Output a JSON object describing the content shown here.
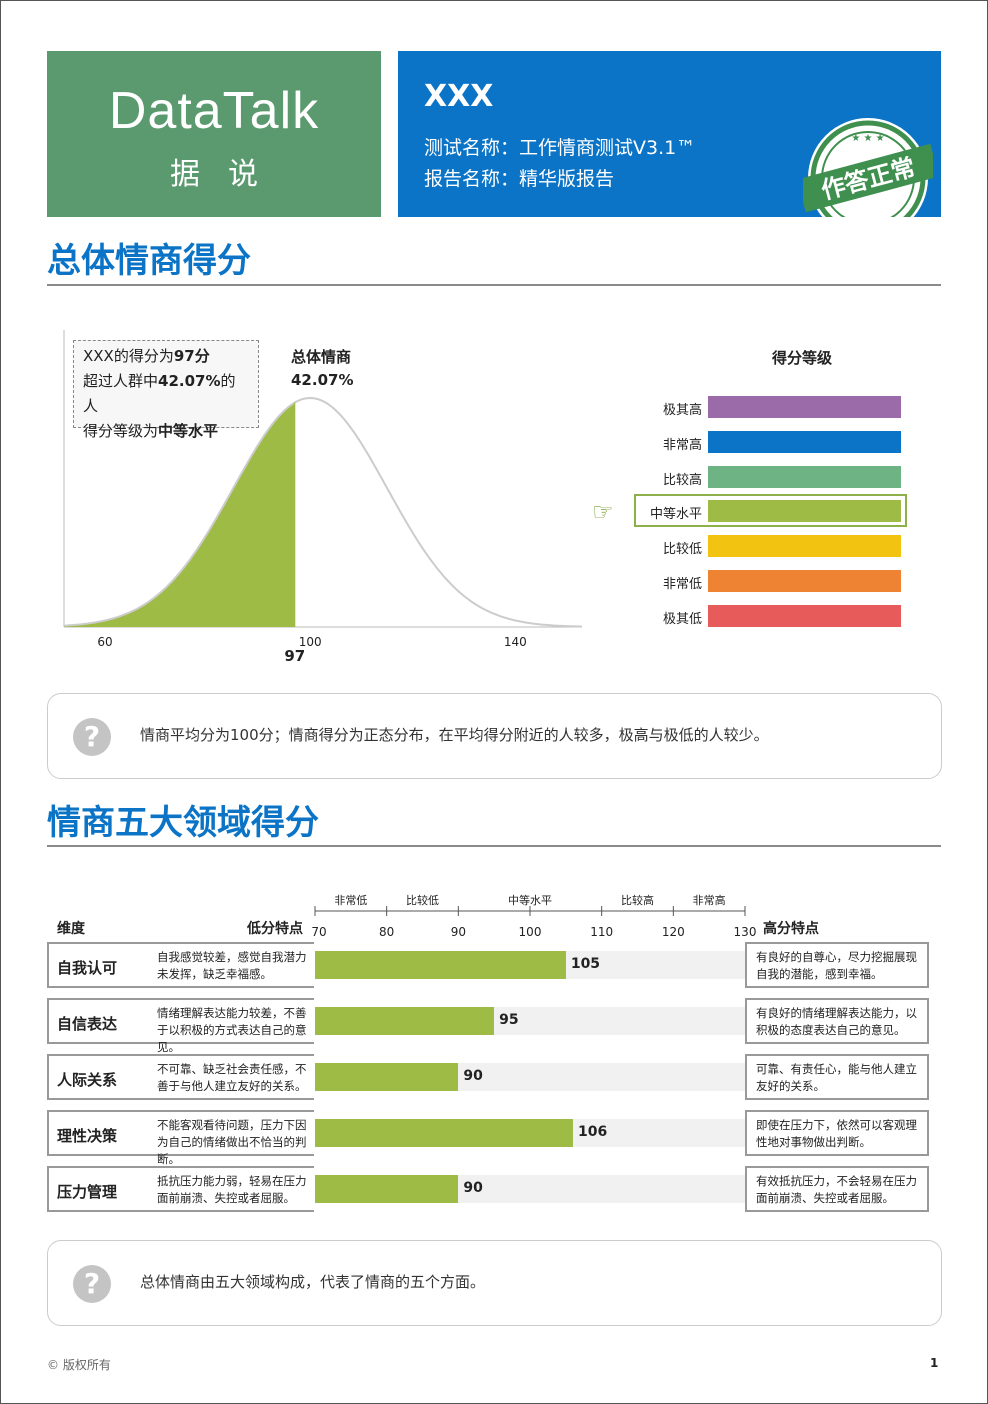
{
  "header": {
    "brand": "DataTalk",
    "brand_sub": "据说",
    "name": "XXX",
    "test_name": "测试名称：工作情商测试V3.1™",
    "report_name": "报告名称：精华版报告",
    "stamp_text": "作答正常",
    "colors": {
      "logo_bg": "#5a9a6e",
      "info_bg": "#0b74c6",
      "stamp": "#3f8f4f"
    }
  },
  "section1": {
    "title": "总体情商得分",
    "note_line1_pre": "XXX的得分为",
    "note_line1_val": "97分",
    "note_line2_pre": "超过人群中",
    "note_line2_val": "42.07%",
    "note_line2_post": "的人",
    "note_line3_pre": "得分等级为",
    "note_line3_val": "中等水平",
    "curve_label": "总体情商",
    "curve_percent": "42.07%",
    "score_marker": "97",
    "grade_title": "得分等级",
    "grades": [
      {
        "label": "极其高",
        "color": "#9b6aa8"
      },
      {
        "label": "非常高",
        "color": "#0b74c6"
      },
      {
        "label": "比较高",
        "color": "#6db384"
      },
      {
        "label": "中等水平",
        "color": "#9dbb45"
      },
      {
        "label": "比较低",
        "color": "#f2c311"
      },
      {
        "label": "非常低",
        "color": "#ef8334"
      },
      {
        "label": "极其低",
        "color": "#e85b5b"
      }
    ],
    "current_grade": "中等水平",
    "tip": "情商平均分为100分；情商得分为正态分布，在平均得分附近的人较多，极高与极低的人较少。"
  },
  "chart_data": {
    "type": "area",
    "title": "总体情商",
    "distribution": "normal",
    "mean": 100,
    "sd": 15,
    "x_ticks": [
      60,
      100,
      140
    ],
    "xlim": [
      52,
      153
    ],
    "score": 97,
    "percentile": 42.07,
    "shaded_range": [
      52,
      97
    ],
    "colors": {
      "shade": "#9dbb45",
      "curve": "#cccccc"
    }
  },
  "section2": {
    "title": "情商五大领域得分",
    "col_dim": "维度",
    "col_low": "低分特点",
    "col_high": "高分特点",
    "band_labels": [
      "非常低",
      "比较低",
      "中等水平",
      "比较高",
      "非常高"
    ],
    "axis_ticks": [
      70,
      80,
      90,
      100,
      110,
      120,
      130
    ],
    "axis_range": [
      70,
      130
    ],
    "rows": [
      {
        "name": "自我认可",
        "score": 105,
        "low": "自我感觉较差，感觉自我潜力未发挥，缺乏幸福感。",
        "high": "有良好的自尊心，尽力挖掘展现自我的潜能，感到幸福。"
      },
      {
        "name": "自信表达",
        "score": 95,
        "low": "情绪理解表达能力较差，不善于以积极的方式表达自己的意见。",
        "high": "有良好的情绪理解表达能力，以积极的态度表达自己的意见。"
      },
      {
        "name": "人际关系",
        "score": 90,
        "low": "不可靠、缺乏社会责任感，不善于与他人建立友好的关系。",
        "high": "可靠、有责任心，能与他人建立友好的关系。"
      },
      {
        "name": "理性决策",
        "score": 106,
        "low": "不能客观看待问题，压力下因为自己的情绪做出不恰当的判断。",
        "high": "即使在压力下，依然可以客观理性地对事物做出判断。"
      },
      {
        "name": "压力管理",
        "score": 90,
        "low": "抵抗压力能力弱，轻易在压力面前崩溃、失控或者屈服。",
        "high": "有效抵抗压力，不会轻易在压力面前崩溃、失控或者屈服。"
      }
    ],
    "tip": "总体情商由五大领域构成，代表了情商的五个方面。"
  },
  "footer": {
    "copyright": "© 版权所有",
    "page": "1"
  }
}
